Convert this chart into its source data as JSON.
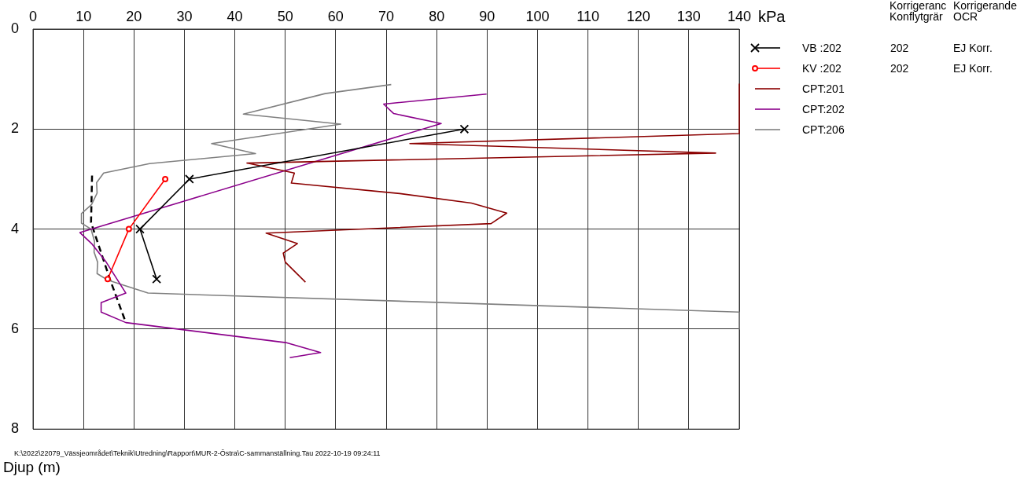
{
  "chart_data": {
    "type": "line",
    "xlabel": "kPa",
    "ylabel": "Djup (m)",
    "xlim": [
      0,
      140
    ],
    "xticks": [
      0,
      10,
      20,
      30,
      40,
      50,
      60,
      70,
      80,
      90,
      100,
      110,
      120,
      130,
      140
    ],
    "ylim": [
      8,
      0
    ],
    "yticks": [
      0,
      2,
      4,
      6,
      8
    ],
    "grid": true,
    "legend": "right",
    "marker": "none",
    "line_style": "solid",
    "series": [
      {
        "name": "VB :202",
        "color": "#000000",
        "marker": "cross",
        "x": [
          85.5,
          31,
          21.2,
          24.5
        ],
        "values": [
          2,
          3,
          4,
          5
        ]
      },
      {
        "name": "KV :202",
        "color": "#ff0000",
        "marker": "circle",
        "x": [
          26.2,
          19,
          14.8
        ],
        "values": [
          3,
          4,
          5
        ]
      },
      {
        "name": "CPT:201",
        "color": "#8b0000",
        "x": [
          140,
          140,
          74.7,
          135.3,
          42.4,
          51.8,
          51.2,
          72.7,
          86.9,
          93.9,
          90.8,
          46.2,
          52.4,
          49.6,
          50,
          54
        ],
        "values": [
          1.1,
          2.09,
          2.29,
          2.48,
          2.68,
          2.88,
          3.08,
          3.29,
          3.48,
          3.68,
          3.89,
          4.08,
          4.29,
          4.48,
          4.66,
          5.06
        ]
      },
      {
        "name": "CPT:202",
        "color": "#8b008b",
        "x": [
          89.9,
          69.5,
          71.5,
          80.9,
          9.3,
          11.7,
          14.5,
          18.4,
          13.5,
          13.5,
          18.4,
          50.1,
          57,
          50.9
        ],
        "values": [
          1.3,
          1.5,
          1.69,
          1.89,
          4.07,
          4.3,
          4.66,
          5.28,
          5.47,
          5.66,
          5.87,
          6.27,
          6.47,
          6.57
        ]
      },
      {
        "name": "CPT:206",
        "color": "#808080",
        "x": [
          71,
          57.9,
          41.7,
          61,
          35.4,
          44.1,
          23.1,
          14,
          12.6,
          12.7,
          11.6,
          9.6,
          9.6,
          11.5,
          12.2,
          12.1,
          12.8,
          12.7,
          14.8,
          22.8,
          140,
          140
        ],
        "values": [
          1.11,
          1.29,
          1.7,
          1.9,
          2.29,
          2.49,
          2.69,
          2.88,
          3.07,
          3.28,
          3.51,
          3.69,
          3.88,
          4,
          4.25,
          4.46,
          4.66,
          4.89,
          5.02,
          5.28,
          5.66,
          6
        ]
      },
      {
        "color": "#000000",
        "line_style": "dashed",
        "x": [
          11.7,
          11.5,
          15.3,
          18.4
        ],
        "values": [
          2.93,
          3.87,
          5.02,
          5.87
        ]
      }
    ],
    "annotations": [
      "Korrigeranc\nKonflytgrär",
      "Korrigerande\nOCR",
      "202",
      "EJ Korr.",
      "202",
      "EJ Korr.",
      "K:\\2022\\22079_Vässjeområdet\\Teknik\\Utredning\\Rapport\\MUR-2-Östra\\C-sammanställning.Tau 2022-10-19 09:24:11"
    ]
  }
}
